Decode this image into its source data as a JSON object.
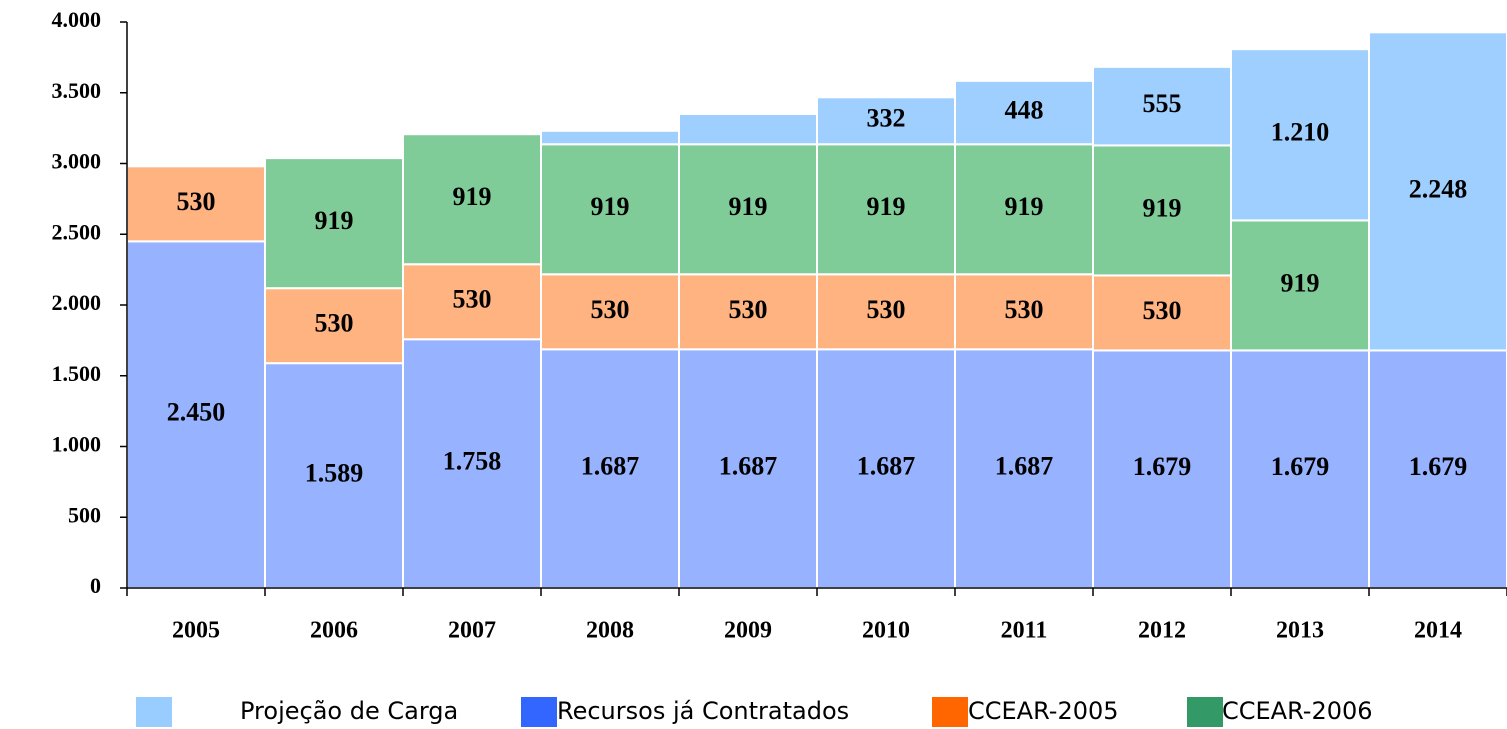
{
  "chart_data": {
    "type": "stacked_bar",
    "categories": [
      "2005",
      "2006",
      "2007",
      "2008",
      "2009",
      "2010",
      "2011",
      "2012",
      "2013",
      "2014"
    ],
    "series": [
      {
        "name": "Recursos já Contratados",
        "color": "#3366ff",
        "fill": "#97b3ff",
        "values": [
          2450,
          1589,
          1758,
          1687,
          1687,
          1687,
          1687,
          1679,
          1679,
          1679
        ],
        "value_labels": [
          "2.450",
          "1.589",
          "1.758",
          "1.687",
          "1.687",
          "1.687",
          "1.687",
          "1.679",
          "1.679",
          "1.679"
        ]
      },
      {
        "name": "CCEAR-2005",
        "color": "#ff6600",
        "fill": "#ffb380",
        "values": [
          530,
          530,
          530,
          530,
          530,
          530,
          530,
          530,
          null,
          null
        ]
      },
      {
        "name": "CCEAR-2006",
        "color": "#339966",
        "fill": "#80cc99",
        "values": [
          null,
          919,
          919,
          919,
          919,
          919,
          919,
          919,
          919,
          null
        ]
      },
      {
        "name": "Projeção de Carga",
        "color": "#99ccff",
        "fill": "#9fcfff",
        "values": [
          null,
          null,
          null,
          95,
          214,
          332,
          448,
          555,
          1210,
          2248
        ],
        "value_labels": [
          null,
          null,
          null,
          null,
          null,
          "332",
          "448",
          "555",
          "1.210",
          "2.248"
        ]
      }
    ],
    "ylim": [
      0,
      4000
    ],
    "yticks": [
      0,
      500,
      {
        "value": 1000,
        "label": "1.000"
      },
      {
        "value": 1500,
        "label": "1.500"
      },
      {
        "value": 2000,
        "label": "2.000"
      },
      {
        "value": 2500,
        "label": "2.500"
      },
      {
        "value": 3000,
        "label": "3.000"
      },
      {
        "value": 3500,
        "label": "3.500"
      },
      {
        "value": 4000,
        "label": "4.000"
      }
    ]
  }
}
